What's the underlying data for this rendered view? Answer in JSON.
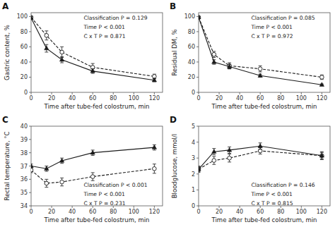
{
  "chart_data": [
    {
      "type": "line",
      "title": "A",
      "x_label": "Time after tube-fed colostrum, min",
      "y_label": "Gastric content, %",
      "x": [
        0,
        15,
        30,
        60,
        120
      ],
      "series": [
        {
          "color": "#1a1a1a",
          "marker": "triangle",
          "line_style": "solid",
          "values": [
            98,
            58,
            43,
            28,
            16
          ],
          "yerr": [
            2,
            5,
            4,
            3,
            2
          ]
        },
        {
          "color": "#1a1a1a",
          "marker": "circle",
          "line_style": "dashed",
          "values": [
            99,
            75,
            53,
            33,
            21
          ],
          "yerr": [
            1,
            6,
            7,
            5,
            3
          ]
        }
      ],
      "xlim": [
        0,
        128
      ],
      "xticks": [
        0,
        20,
        40,
        60,
        80,
        100,
        120
      ],
      "ylim": [
        0,
        105
      ],
      "yticks": [
        0,
        20,
        40,
        60,
        80,
        100
      ],
      "annotations": [
        "Classification P = 0.129",
        "Time P < 0.001",
        "C x T P = 0.871"
      ],
      "grid": false
    },
    {
      "type": "line",
      "title": "B",
      "x_label": "Time after tube-fed colostrum, min",
      "y_label": "Residual DM, %",
      "x": [
        0,
        15,
        30,
        60,
        120
      ],
      "series": [
        {
          "color": "#1a1a1a",
          "marker": "triangle",
          "line_style": "solid",
          "values": [
            99,
            40,
            34,
            22,
            10
          ],
          "yerr": [
            1,
            3,
            3,
            2,
            1
          ]
        },
        {
          "color": "#1a1a1a",
          "marker": "circle",
          "line_style": "dashed",
          "values": [
            99,
            50,
            35,
            31,
            20
          ],
          "yerr": [
            1,
            4,
            4,
            4,
            3
          ]
        }
      ],
      "xlim": [
        0,
        128
      ],
      "xticks": [
        0,
        20,
        40,
        60,
        80,
        100,
        120
      ],
      "ylim": [
        0,
        105
      ],
      "yticks": [
        0,
        20,
        40,
        60,
        80,
        100
      ],
      "annotations": [
        "Classification P = 0.085",
        "Time P < 0.001",
        "C x T P = 0.972"
      ],
      "grid": false
    },
    {
      "type": "line",
      "title": "C",
      "x_label": "Time after tube-fed colostrum, min",
      "y_label": "Rectal temperature, °C",
      "x": [
        0,
        15,
        30,
        60,
        120
      ],
      "series": [
        {
          "color": "#1a1a1a",
          "marker": "triangle",
          "line_style": "solid",
          "values": [
            37.0,
            36.8,
            37.4,
            38.0,
            38.4
          ],
          "yerr": [
            0.15,
            0.2,
            0.2,
            0.2,
            0.2
          ]
        },
        {
          "color": "#1a1a1a",
          "marker": "circle",
          "line_style": "dashed",
          "values": [
            36.7,
            35.7,
            35.8,
            36.2,
            36.8
          ],
          "yerr": [
            0.2,
            0.3,
            0.3,
            0.3,
            0.35
          ]
        }
      ],
      "xlim": [
        0,
        128
      ],
      "xticks": [
        0,
        20,
        40,
        60,
        80,
        100,
        120
      ],
      "ylim": [
        34,
        40
      ],
      "yticks": [
        34,
        35,
        36,
        37,
        38,
        39,
        40
      ],
      "annotations": [
        "Classification P < 0.001",
        "Time P < 0.001",
        "C x T P = 0.231"
      ],
      "grid": false
    },
    {
      "type": "line",
      "title": "D",
      "x_label": "Time after tube-fed colostrum, min",
      "y_label": "Bloodglucose, mmol/l",
      "x": [
        0,
        15,
        30,
        60,
        120
      ],
      "series": [
        {
          "color": "#1a1a1a",
          "marker": "triangle",
          "line_style": "solid",
          "values": [
            2.3,
            3.4,
            3.5,
            3.75,
            3.15
          ],
          "yerr": [
            0.15,
            0.2,
            0.2,
            0.2,
            0.2
          ]
        },
        {
          "color": "#1a1a1a",
          "marker": "circle",
          "line_style": "dashed",
          "values": [
            2.3,
            2.85,
            3.0,
            3.45,
            3.15
          ],
          "yerr": [
            0.2,
            0.25,
            0.25,
            0.2,
            0.25
          ]
        }
      ],
      "xlim": [
        0,
        128
      ],
      "xticks": [
        0,
        20,
        40,
        60,
        80,
        100,
        120
      ],
      "ylim": [
        0,
        5
      ],
      "yticks": [
        0,
        1,
        2,
        3,
        4,
        5
      ],
      "annotations": [
        "Classification P = 0.146",
        "Time P < 0.001",
        "C x T P = 0.815"
      ],
      "grid": false
    }
  ]
}
